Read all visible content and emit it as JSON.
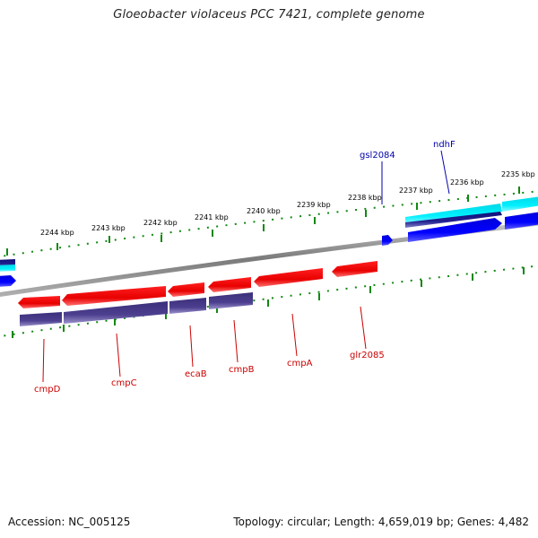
{
  "title": "Gloeobacter violaceus PCC 7421, complete genome",
  "footer": {
    "accession": "Accession: NC_005125",
    "topology": "Topology: circular; Length: 4,659,019 bp; Genes: 4,482"
  },
  "colors": {
    "forward_gene": "#0000ee",
    "forward_gene_alt": "#00e5ee",
    "reverse_gene": "#ee0000",
    "cds_reverse": "#4d3f8f",
    "tick": "#118811",
    "backbone": "#888888",
    "forward_label": "#0000aa",
    "reverse_label": "#cc0000"
  },
  "kbp_labels": [
    "2244 kbp",
    "2243 kbp",
    "2242 kbp",
    "2241 kbp",
    "2240 kbp",
    "2239 kbp",
    "2238 kbp",
    "2237 kbp",
    "2236 kbp",
    "2235 kbp"
  ],
  "forward_gene_labels": [
    "gsl2084",
    "ndhF"
  ],
  "reverse_gene_labels": [
    "cmpD",
    "cmpC",
    "ecaB",
    "cmpB",
    "cmpA",
    "glr2085"
  ]
}
